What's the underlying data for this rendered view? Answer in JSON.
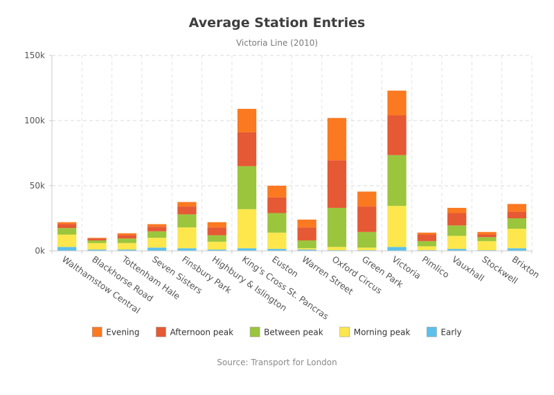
{
  "chart_data": {
    "type": "bar",
    "stacked": true,
    "title": "Average Station Entries",
    "subtitle": "Victoria Line (2010)",
    "source": "Source: Transport for London",
    "categories": [
      "Walthamstow Central",
      "Blackhorse Road",
      "Tottenham Hale",
      "Seven Sisters",
      "Finsbury Park",
      "Highbury & Islington",
      "King's Cross St. Pancras",
      "Euston",
      "Warren Street",
      "Oxford Circus",
      "Green Park",
      "Victoria",
      "Pimlico",
      "Vauxhall",
      "Stockwell",
      "Brixton"
    ],
    "series": [
      {
        "name": "Early",
        "color": "#5bc0eb",
        "values": [
          3000,
          1000,
          1000,
          2500,
          2000,
          1000,
          2000,
          1500,
          1000,
          500,
          500,
          3000,
          500,
          1500,
          500,
          2000
        ]
      },
      {
        "name": "Morning peak",
        "color": "#fde74c",
        "values": [
          9500,
          5000,
          5000,
          7500,
          16000,
          6000,
          30000,
          12500,
          1000,
          2500,
          2000,
          31500,
          3000,
          10000,
          7000,
          15000
        ]
      },
      {
        "name": "Between peak",
        "color": "#9bc53d",
        "values": [
          5000,
          2000,
          3500,
          5000,
          10000,
          5000,
          33000,
          15000,
          6000,
          30000,
          12000,
          39000,
          4000,
          8000,
          3000,
          8000
        ]
      },
      {
        "name": "Afternoon peak",
        "color": "#e55934",
        "values": [
          3000,
          1500,
          2500,
          3500,
          6000,
          6000,
          26000,
          12000,
          10000,
          36500,
          19500,
          30500,
          5000,
          9500,
          2000,
          5000
        ]
      },
      {
        "name": "Evening",
        "color": "#fa7921",
        "values": [
          1500,
          500,
          1500,
          2000,
          3500,
          4000,
          18000,
          9000,
          6000,
          32500,
          11500,
          19000,
          1500,
          4000,
          2000,
          6000
        ]
      }
    ],
    "legend_order": [
      "Evening",
      "Afternoon peak",
      "Between peak",
      "Morning peak",
      "Early"
    ],
    "ylim": [
      0,
      150000
    ],
    "yticks": [
      0,
      50000,
      100000,
      150000
    ],
    "ytick_labels": [
      "0k",
      "50k",
      "100k",
      "150k"
    ],
    "grid": true,
    "legend_position": "bottom"
  }
}
